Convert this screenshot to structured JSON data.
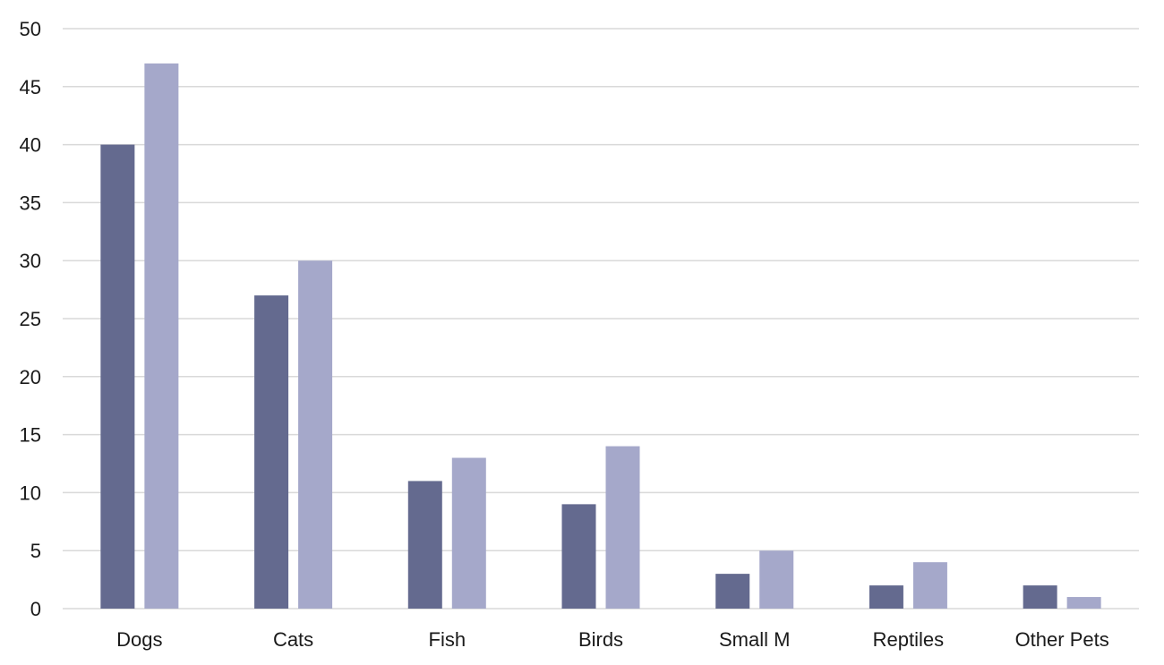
{
  "chart_data": {
    "type": "bar",
    "categories": [
      "Dogs",
      "Cats",
      "Fish",
      "Birds",
      "Small M",
      "Reptiles",
      "Other Pets"
    ],
    "series": [
      {
        "values": [
          40,
          27,
          11,
          9,
          3,
          2,
          2
        ],
        "color": "#646a8f"
      },
      {
        "values": [
          47,
          30,
          13,
          14,
          5,
          4,
          1
        ],
        "color": "#a5a8ca"
      }
    ],
    "ylim": [
      0,
      50
    ],
    "yticks": [
      0,
      5,
      10,
      15,
      20,
      25,
      30,
      35,
      40,
      45,
      50
    ],
    "grid": true,
    "legend": "none",
    "title": "",
    "xlabel": "",
    "ylabel": ""
  }
}
